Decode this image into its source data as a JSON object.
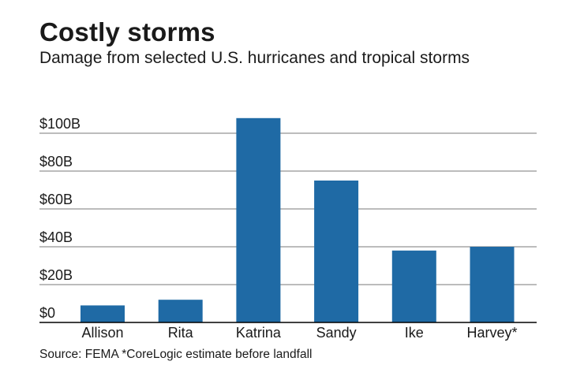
{
  "chart_data": {
    "type": "bar",
    "title": "Costly storms",
    "subtitle": "Damage from selected U.S. hurricanes and tropical storms",
    "categories": [
      "Allison",
      "Rita",
      "Katrina",
      "Sandy",
      "Ike",
      "Harvey*"
    ],
    "values": [
      9,
      12,
      108,
      75,
      38,
      40
    ],
    "value_unit": "billion USD",
    "xlabel": "",
    "ylabel": "",
    "ylim": [
      0,
      120
    ],
    "yticks": [
      0,
      20,
      40,
      60,
      80,
      100
    ],
    "ytick_labels": [
      "$0",
      "$20B",
      "$40B",
      "$60B",
      "$80B",
      "$100B"
    ],
    "grid": true,
    "legend": "none",
    "bar_color": "#1f6aa5",
    "source": "Source: FEMA *CoreLogic estimate before landfall"
  }
}
